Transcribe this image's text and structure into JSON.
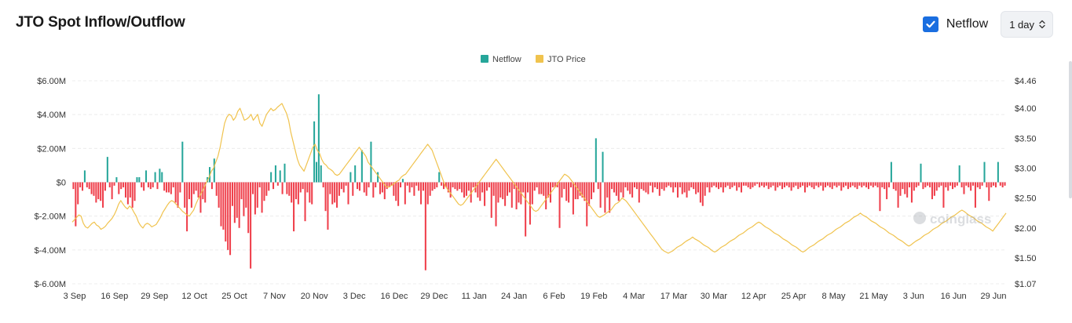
{
  "header": {
    "title": "JTO Spot Inflow/Outflow",
    "netflow_toggle_label": "Netflow",
    "netflow_checked": true,
    "interval_value": "1 day"
  },
  "watermark": "coinglass",
  "colors": {
    "inflow": "#26a69a",
    "outflow": "#ef3e4a",
    "price": "#f0c34e",
    "checkbox": "#1a6ee0"
  },
  "chart_data": {
    "type": "bar",
    "title": "JTO Spot Inflow/Outflow",
    "legend": [
      "Netflow",
      "JTO Price"
    ],
    "legend_position": "top-center",
    "grid": true,
    "x_tick_labels": [
      "3 Sep",
      "16 Sep",
      "29 Sep",
      "12 Oct",
      "25 Oct",
      "7 Nov",
      "20 Nov",
      "3 Dec",
      "16 Dec",
      "29 Dec",
      "11 Jan",
      "24 Jan",
      "6 Feb",
      "19 Feb",
      "4 Mar",
      "17 Mar",
      "30 Mar",
      "12 Apr",
      "25 Apr",
      "8 May",
      "21 May",
      "3 Jun",
      "16 Jun",
      "29 Jun"
    ],
    "y_left_ticks": [
      "$6.00M",
      "$4.00M",
      "$2.00M",
      "$0",
      "$-2.00M",
      "$-4.00M",
      "$-6.00M"
    ],
    "y_right_ticks": [
      "$4.46",
      "$4.00",
      "$3.50",
      "$3.00",
      "$2.50",
      "$2.00",
      "$1.50",
      "$1.07"
    ],
    "y_left_range": [
      -6000000,
      6000000
    ],
    "y_right_range": [
      1.07,
      4.46
    ],
    "series": [
      {
        "name": "Netflow",
        "unit": "USD",
        "values": [
          -400000,
          -2600000,
          -1300000,
          -300000,
          -500000,
          700000,
          -300000,
          -400000,
          -700000,
          -800000,
          -1200000,
          -1000000,
          -1100000,
          -1500000,
          -500000,
          1500000,
          -300000,
          -1000000,
          -200000,
          300000,
          -700000,
          -400000,
          -300000,
          -900000,
          -1300000,
          -900000,
          -1500000,
          -1100000,
          300000,
          300000,
          -300000,
          -500000,
          700000,
          -300000,
          -400000,
          -300000,
          600000,
          -400000,
          800000,
          600000,
          -500000,
          -600000,
          -600000,
          -700000,
          -300000,
          -1200000,
          -1500000,
          -600000,
          2400000,
          -1500000,
          -2900000,
          -1000000,
          -1500000,
          -700000,
          -500000,
          -900000,
          -1800000,
          -1000000,
          -1200000,
          300000,
          900000,
          -400000,
          1400000,
          -800000,
          -1500000,
          -2600000,
          -2800000,
          -3500000,
          -4000000,
          -4300000,
          -1400000,
          -2400000,
          -2100000,
          -2700000,
          -1000000,
          -2000000,
          -1500000,
          -3000000,
          -5100000,
          -700000,
          -1900000,
          -1500000,
          -300000,
          -1800000,
          -1100000,
          -800000,
          -500000,
          600000,
          -400000,
          1000000,
          -200000,
          700000,
          -700000,
          1100000,
          -700000,
          -800000,
          -1200000,
          -2900000,
          -1000000,
          -1300000,
          -600000,
          -400000,
          -2300000,
          -600000,
          -1200000,
          -1300000,
          3600000,
          1200000,
          5200000,
          1000000,
          -300000,
          -1700000,
          -2800000,
          -700000,
          -1300000,
          -1200000,
          -1500000,
          -800000,
          -400000,
          -600000,
          -200000,
          -1300000,
          600000,
          -800000,
          1000000,
          -400000,
          -500000,
          1900000,
          -600000,
          -800000,
          -300000,
          2400000,
          -900000,
          -300000,
          600000,
          -700000,
          -600000,
          -1000000,
          -400000,
          -300000,
          -200000,
          -800000,
          -1100000,
          -1400000,
          -300000,
          200000,
          -1300000,
          -200000,
          -600000,
          -300000,
          -800000,
          -200000,
          -500000,
          -1300000,
          -500000,
          -5200000,
          -1300000,
          -800000,
          -500000,
          -400000,
          -300000,
          600000,
          -200000,
          -400000,
          -300000,
          -600000,
          -900000,
          -300000,
          -400000,
          -500000,
          -400000,
          -600000,
          -900000,
          -800000,
          -500000,
          -1200000,
          -300000,
          -600000,
          -900000,
          -1100000,
          -600000,
          -1400000,
          -500000,
          -300000,
          -2100000,
          -800000,
          -2600000,
          -1200000,
          -900000,
          -1000000,
          -1400000,
          -800000,
          -600000,
          -1500000,
          -400000,
          -1600000,
          -1200000,
          -1300000,
          -600000,
          -3200000,
          -600000,
          -2500000,
          -1300000,
          -500000,
          -300000,
          -700000,
          -700000,
          -800000,
          -1600000,
          -900000,
          -1200000,
          -300000,
          -300000,
          -300000,
          -2700000,
          -900000,
          -400000,
          -1100000,
          -1200000,
          -300000,
          -1900000,
          -1000000,
          -1000000,
          -800000,
          -900000,
          -1100000,
          -2600000,
          -1400000,
          -1000000,
          -600000,
          2600000,
          -400000,
          -1500000,
          1800000,
          -1800000,
          -900000,
          -1800000,
          -400000,
          -600000,
          -800000,
          -1100000,
          -600000,
          -900000,
          -300000,
          -500000,
          -700000,
          -900000,
          -300000,
          -400000,
          -1200000,
          -400000,
          -500000,
          -600000,
          -700000,
          -200000,
          -600000,
          -300000,
          -400000,
          -800000,
          -400000,
          -500000,
          -300000,
          -200000,
          -300000,
          -600000,
          -300000,
          -900000,
          -300000,
          -700000,
          -600000,
          -900000,
          -500000,
          -300000,
          -400000,
          -700000,
          -600000,
          -1200000,
          -1400000,
          -800000,
          -300000,
          -600000,
          -300000,
          -200000,
          -300000,
          -400000,
          -300000,
          -600000,
          -300000,
          -200000,
          -400000,
          -300000,
          -200000,
          -500000,
          -300000,
          -600000,
          -200000,
          -200000,
          -300000,
          -400000,
          -300000,
          -200000,
          -100000,
          -300000,
          -200000,
          -300000,
          -200000,
          -400000,
          -300000,
          -200000,
          -500000,
          -300000,
          -200000,
          -400000,
          -300000,
          -200000,
          -300000,
          -500000,
          -300000,
          -200000,
          -400000,
          -300000,
          -200000,
          -600000,
          -300000,
          -200000,
          -300000,
          -400000,
          -200000,
          -300000,
          -200000,
          -500000,
          -300000,
          -200000,
          -300000,
          -400000,
          -200000,
          -300000,
          -200000,
          -500000,
          -300000,
          -200000,
          -400000,
          -300000,
          -200000,
          -300000,
          -400000,
          -200000,
          -300000,
          -200000,
          -300000,
          -400000,
          -200000,
          -300000,
          -200000,
          -300000,
          -1700000,
          -300000,
          -400000,
          -1000000,
          -300000,
          1200000,
          -400000,
          -500000,
          -1500000,
          -800000,
          -400000,
          -700000,
          -900000,
          -300000,
          -1200000,
          -500000,
          -300000,
          -200000,
          1100000,
          -400000,
          -300000,
          -200000,
          -300000,
          -1000000,
          -800000,
          -500000,
          -300000,
          -200000,
          -1500000,
          -300000,
          -500000,
          -200000,
          -400000,
          -300000,
          -200000,
          1000000,
          -300000,
          -700000,
          -200000,
          -300000,
          -500000,
          -200000,
          -1500000,
          -300000,
          -400000,
          -200000,
          1200000,
          -300000,
          -1100000,
          -300000,
          -200000,
          -300000,
          1200000,
          -200000,
          -300000,
          -200000
        ]
      },
      {
        "name": "JTO Price",
        "unit": "USD",
        "values": [
          2.1,
          2.14,
          2.18,
          2.22,
          2.2,
          2.08,
          2.02,
          2.0,
          2.04,
          2.08,
          2.1,
          2.05,
          2.03,
          1.98,
          2.0,
          2.03,
          2.08,
          2.12,
          2.16,
          2.22,
          2.3,
          2.4,
          2.46,
          2.4,
          2.35,
          2.32,
          2.37,
          2.33,
          2.26,
          2.2,
          2.1,
          2.04,
          2.0,
          2.06,
          2.08,
          2.06,
          2.02,
          2.04,
          2.06,
          2.12,
          2.18,
          2.26,
          2.32,
          2.38,
          2.43,
          2.46,
          2.44,
          2.4,
          2.36,
          2.32,
          2.28,
          2.25,
          2.22,
          2.2,
          2.25,
          2.3,
          2.4,
          2.48,
          2.55,
          2.62,
          2.7,
          2.78,
          2.85,
          2.95,
          3.0,
          3.1,
          3.2,
          3.35,
          3.55,
          3.75,
          3.85,
          3.9,
          3.88,
          3.8,
          3.85,
          3.95,
          4.0,
          3.9,
          3.8,
          3.82,
          3.85,
          3.9,
          3.8,
          3.85,
          3.9,
          3.75,
          3.7,
          3.8,
          3.9,
          3.95,
          4.0,
          3.96,
          3.98,
          4.02,
          4.05,
          4.08,
          4.0,
          3.92,
          3.8,
          3.6,
          3.45,
          3.3,
          3.15,
          3.05,
          3.0,
          2.95,
          3.05,
          3.15,
          3.25,
          3.35,
          3.4,
          3.3,
          3.25,
          3.15,
          3.08,
          3.05,
          3.0,
          2.98,
          2.95,
          2.9,
          2.88,
          2.9,
          2.95,
          3.0,
          3.05,
          3.1,
          3.15,
          3.2,
          3.25,
          3.3,
          3.35,
          3.3,
          3.25,
          3.2,
          3.1,
          3.05,
          3.0,
          2.95,
          2.9,
          2.85,
          2.8,
          2.75,
          2.7,
          2.68,
          2.7,
          2.72,
          2.75,
          2.78,
          2.8,
          2.85,
          2.88,
          2.9,
          2.95,
          3.0,
          3.05,
          3.1,
          3.15,
          3.2,
          3.25,
          3.3,
          3.35,
          3.4,
          3.35,
          3.3,
          3.2,
          3.1,
          3.0,
          2.9,
          2.8,
          2.7,
          2.65,
          2.6,
          2.55,
          2.5,
          2.45,
          2.4,
          2.38,
          2.4,
          2.45,
          2.5,
          2.55,
          2.6,
          2.65,
          2.7,
          2.75,
          2.8,
          2.85,
          2.9,
          2.95,
          3.0,
          3.05,
          3.1,
          3.15,
          3.1,
          3.05,
          3.0,
          2.95,
          2.9,
          2.85,
          2.8,
          2.75,
          2.7,
          2.65,
          2.6,
          2.55,
          2.5,
          2.45,
          2.4,
          2.35,
          2.3,
          2.28,
          2.3,
          2.35,
          2.4,
          2.45,
          2.5,
          2.55,
          2.6,
          2.65,
          2.7,
          2.75,
          2.8,
          2.85,
          2.9,
          2.88,
          2.85,
          2.8,
          2.75,
          2.7,
          2.65,
          2.6,
          2.55,
          2.5,
          2.45,
          2.4,
          2.35,
          2.3,
          2.25,
          2.2,
          2.18,
          2.2,
          2.22,
          2.25,
          2.28,
          2.3,
          2.35,
          2.4,
          2.42,
          2.45,
          2.5,
          2.48,
          2.45,
          2.4,
          2.35,
          2.3,
          2.25,
          2.2,
          2.15,
          2.1,
          2.05,
          2.0,
          1.95,
          1.9,
          1.85,
          1.8,
          1.75,
          1.7,
          1.65,
          1.62,
          1.6,
          1.58,
          1.6,
          1.62,
          1.65,
          1.68,
          1.7,
          1.72,
          1.75,
          1.78,
          1.8,
          1.82,
          1.85,
          1.82,
          1.8,
          1.78,
          1.75,
          1.72,
          1.7,
          1.68,
          1.65,
          1.62,
          1.6,
          1.62,
          1.65,
          1.68,
          1.7,
          1.72,
          1.75,
          1.78,
          1.8,
          1.82,
          1.85,
          1.88,
          1.9,
          1.92,
          1.95,
          1.98,
          2.0,
          2.02,
          2.05,
          2.08,
          2.1,
          2.08,
          2.05,
          2.02,
          2.0,
          1.98,
          1.95,
          1.92,
          1.9,
          1.88,
          1.85,
          1.82,
          1.8,
          1.78,
          1.75,
          1.72,
          1.7,
          1.68,
          1.65,
          1.62,
          1.6,
          1.62,
          1.65,
          1.68,
          1.7,
          1.72,
          1.75,
          1.78,
          1.8,
          1.82,
          1.85,
          1.88,
          1.9,
          1.92,
          1.95,
          1.98,
          2.0,
          2.02,
          2.05,
          2.08,
          2.1,
          2.12,
          2.15,
          2.18,
          2.2,
          2.22,
          2.25,
          2.22,
          2.2,
          2.18,
          2.15,
          2.12,
          2.1,
          2.08,
          2.05,
          2.02,
          2.0,
          1.98,
          1.95,
          1.92,
          1.9,
          1.88,
          1.85,
          1.82,
          1.8,
          1.78,
          1.75,
          1.72,
          1.7,
          1.72,
          1.75,
          1.78,
          1.8,
          1.82,
          1.85,
          1.88,
          1.9,
          1.92,
          1.95,
          1.98,
          2.0,
          2.02,
          2.05,
          2.08,
          2.1,
          2.12,
          2.15,
          2.18,
          2.2,
          2.22,
          2.25,
          2.28,
          2.3,
          2.28,
          2.25,
          2.22,
          2.2,
          2.18,
          2.15,
          2.12,
          2.1,
          2.08,
          2.05,
          2.02,
          2.0,
          1.98,
          1.95,
          2.0,
          2.05,
          2.1,
          2.15,
          2.2,
          2.25
        ]
      }
    ]
  }
}
